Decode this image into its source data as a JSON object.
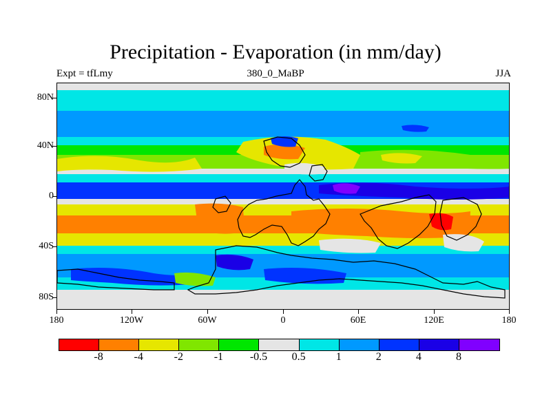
{
  "title": "Precipitation - Evaporation (in mm/day)",
  "subtitle_left": "Expt = tfLmy",
  "subtitle_center": "380_0_MaBP",
  "subtitle_right": "JJA",
  "lat_labels": [
    "80N",
    "40N",
    "0",
    "40S",
    "80S"
  ],
  "lon_labels": [
    "180",
    "120W",
    "60W",
    "0",
    "60E",
    "120E",
    "180"
  ],
  "colorbar": {
    "colors": [
      "#ff0000",
      "#ff8000",
      "#e6e600",
      "#80e600",
      "#00e600",
      "#e5e5e5",
      "#00e6e6",
      "#0099ff",
      "#0033ff",
      "#1a00e6",
      "#8000ff"
    ],
    "labels": [
      "-8",
      "-4",
      "-2",
      "-1",
      "-0.5",
      "0.5",
      "1",
      "2",
      "4",
      "8"
    ]
  }
}
